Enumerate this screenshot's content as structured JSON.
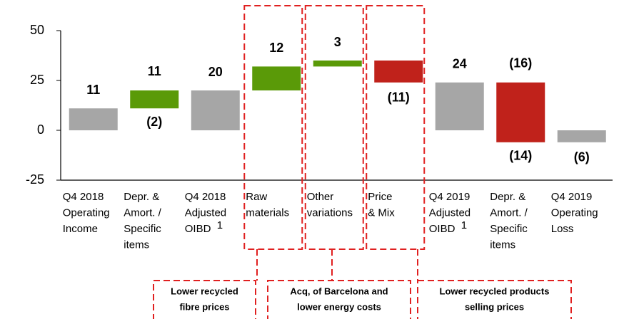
{
  "chart_data": {
    "type": "waterfall",
    "categories": [
      [
        "Q4 2018",
        "Operating",
        "Income"
      ],
      [
        "Depr. &",
        "Amort. /",
        "Specific",
        "items"
      ],
      [
        "Q4 2018",
        "Adjusted",
        "OIBD"
      ],
      [
        "Raw",
        "materials"
      ],
      [
        "Other",
        "variations"
      ],
      [
        "Price",
        "& Mix"
      ],
      [
        "Q4 2019",
        "Adjusted",
        "OIBD"
      ],
      [
        "Depr. &",
        "Amort. /",
        "Specific",
        "items"
      ],
      [
        "Q4 2019",
        "Operating",
        "Loss"
      ]
    ],
    "category_marks": [
      null,
      null,
      "1",
      null,
      null,
      null,
      "1",
      null,
      null
    ],
    "kinds": [
      "total",
      "change",
      "total",
      "change",
      "change",
      "change",
      "total",
      "change",
      "total"
    ],
    "values": [
      11,
      [
        11,
        -2
      ],
      20,
      12,
      3,
      -11,
      24,
      [
        -16,
        -14
      ],
      -6
    ],
    "value_labels": [
      "11",
      [
        "11",
        "(2)"
      ],
      "20",
      "12",
      "3",
      "(11)",
      "24",
      [
        "(16)",
        "(14)"
      ],
      "(6)"
    ],
    "colors": {
      "total": "#a6a6a6",
      "increase": "#5a9a08",
      "decrease": "#c0221b"
    },
    "ylim": [
      -25,
      50
    ],
    "yticks": [
      -25,
      0,
      25,
      50
    ],
    "annotations": [
      {
        "category": 3,
        "text": [
          "Lower recycled",
          "fibre prices"
        ]
      },
      {
        "category": 4,
        "text": [
          "Acq, of Barcelona and",
          "lower energy costs"
        ]
      },
      {
        "category": 5,
        "text": [
          "Lower recycled products",
          "selling prices"
        ]
      }
    ]
  }
}
